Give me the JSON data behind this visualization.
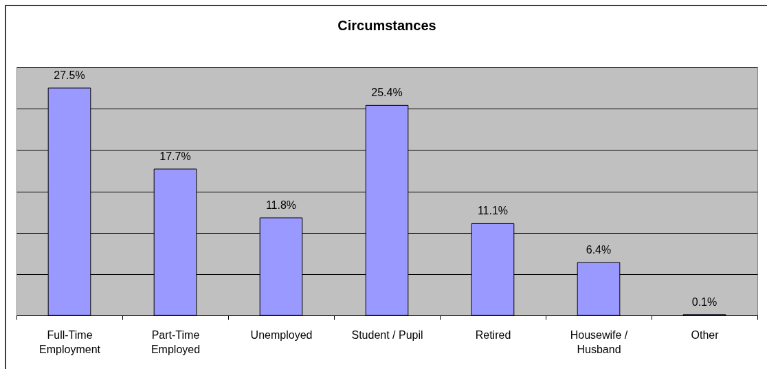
{
  "chart_data": {
    "type": "bar",
    "title": "Circumstances",
    "categories": [
      "Full-Time Employment",
      "Part-Time Employed",
      "Unemployed",
      "Student / Pupil",
      "Retired",
      "Housewife / Husband",
      "Other"
    ],
    "values": [
      27.5,
      17.7,
      11.8,
      25.4,
      11.1,
      6.4,
      0.1
    ],
    "color": "#9999ff",
    "value_labels": [
      "27.5%",
      "17.7%",
      "11.8%",
      "25.4%",
      "11.1%",
      "6.4%",
      "0.1%"
    ],
    "ylim": [
      0,
      30
    ],
    "yticks": [
      0,
      5,
      10,
      15,
      20,
      25,
      30
    ],
    "grid": "y",
    "tick_labels": "x"
  }
}
